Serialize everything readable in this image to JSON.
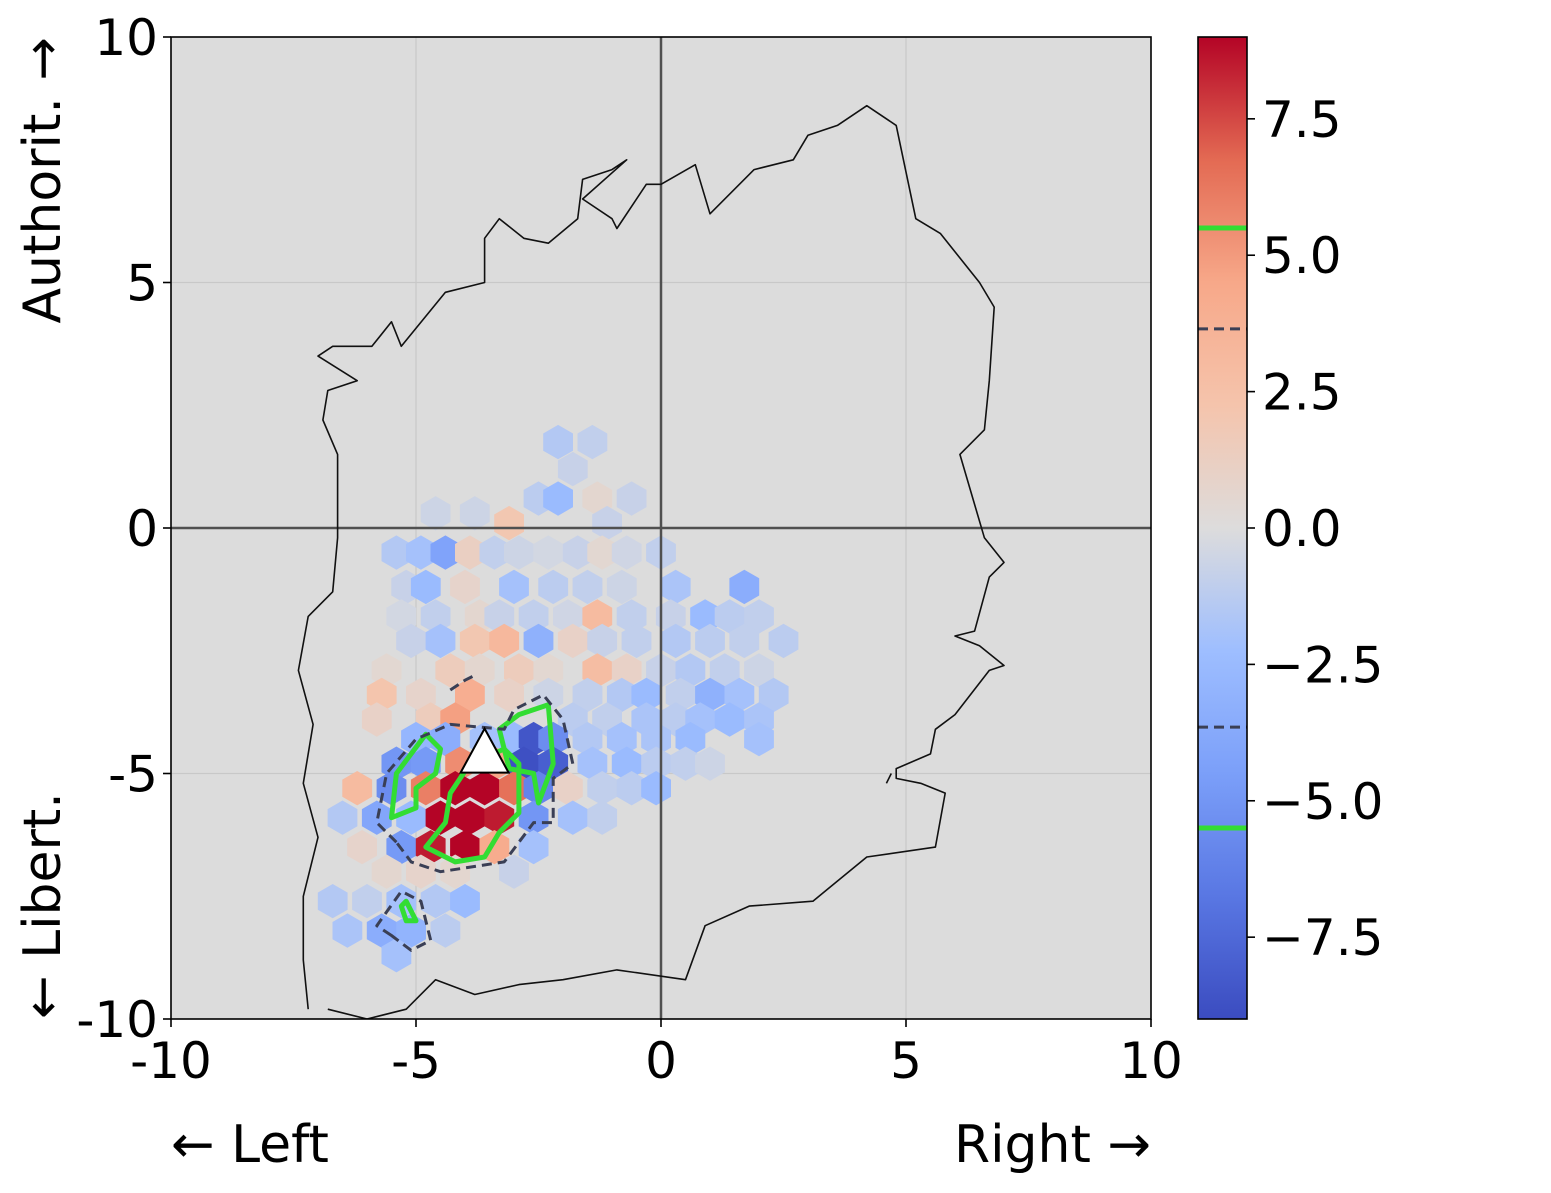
{
  "chart_data": {
    "type": "heatmap",
    "subtype": "hexbin difference map on political compass",
    "xlim": [
      -10,
      10
    ],
    "ylim": [
      -10,
      10
    ],
    "xticks": [
      -10,
      -5,
      0,
      5,
      10
    ],
    "yticks": [
      -10,
      -5,
      0,
      5,
      10
    ],
    "xtick_labels": [
      "-10",
      "-5",
      "0",
      "5",
      "10"
    ],
    "ytick_labels": [
      "-10",
      "-5",
      "0",
      "5",
      "10"
    ],
    "xlabel_left": "← Left",
    "xlabel_right": "Right →",
    "ylabel_bottom": "← Libert.",
    "ylabel_top": "Authorit. →",
    "grid": true,
    "background": "#dcdcdc",
    "colormap": "coolwarm",
    "colorbar": {
      "range": [
        -9,
        9
      ],
      "ticks": [
        -7.5,
        -5.0,
        -2.5,
        0.0,
        2.5,
        5.0,
        7.5
      ],
      "tick_labels": [
        "−7.5",
        "−5.0",
        "−2.5",
        "0.0",
        "2.5",
        "5.0",
        "7.5"
      ],
      "contour_levels": [
        {
          "value": 5.5,
          "style": "solid",
          "color": "#33dd33"
        },
        {
          "value": 3.65,
          "style": "dashed",
          "color": "#3a3f55"
        },
        {
          "value": -3.65,
          "style": "dashed",
          "color": "#3a3f55"
        },
        {
          "value": -5.5,
          "style": "solid",
          "color": "#33dd33"
        }
      ]
    },
    "hex_size": 0.35,
    "hexbins": [
      {
        "x": -2.1,
        "y": 1.75,
        "v": -1.5
      },
      {
        "x": -1.4,
        "y": 1.75,
        "v": -1.0
      },
      {
        "x": -1.8,
        "y": 1.2,
        "v": -0.8
      },
      {
        "x": -2.5,
        "y": 0.6,
        "v": -1.2
      },
      {
        "x": -2.1,
        "y": 0.6,
        "v": -2.5
      },
      {
        "x": -1.3,
        "y": 0.6,
        "v": 0.6
      },
      {
        "x": -0.6,
        "y": 0.6,
        "v": -0.8
      },
      {
        "x": -4.6,
        "y": 0.3,
        "v": -0.6
      },
      {
        "x": -3.8,
        "y": 0.3,
        "v": -0.6
      },
      {
        "x": -3.1,
        "y": 0.1,
        "v": 2.0
      },
      {
        "x": -1.1,
        "y": 0.1,
        "v": -0.8
      },
      {
        "x": -5.4,
        "y": -0.5,
        "v": -1.5
      },
      {
        "x": -4.9,
        "y": -0.5,
        "v": -2.0
      },
      {
        "x": -4.4,
        "y": -0.5,
        "v": -4.2
      },
      {
        "x": -3.9,
        "y": -0.5,
        "v": 1.2
      },
      {
        "x": -3.4,
        "y": -0.5,
        "v": -1.0
      },
      {
        "x": -2.9,
        "y": -0.5,
        "v": -0.6
      },
      {
        "x": -2.3,
        "y": -0.5,
        "v": -0.4
      },
      {
        "x": -1.7,
        "y": -0.5,
        "v": -0.8
      },
      {
        "x": -1.2,
        "y": -0.5,
        "v": 0.5
      },
      {
        "x": -0.7,
        "y": -0.5,
        "v": -0.5
      },
      {
        "x": 0.0,
        "y": -0.5,
        "v": -1.0
      },
      {
        "x": -5.2,
        "y": -1.2,
        "v": -0.8
      },
      {
        "x": -4.8,
        "y": -1.2,
        "v": -2.5
      },
      {
        "x": -4.0,
        "y": -1.2,
        "v": 0.8
      },
      {
        "x": -3.0,
        "y": -1.2,
        "v": -2.0
      },
      {
        "x": -2.2,
        "y": -1.2,
        "v": -1.2
      },
      {
        "x": -1.5,
        "y": -1.2,
        "v": -1.0
      },
      {
        "x": -0.8,
        "y": -1.2,
        "v": -0.6
      },
      {
        "x": 0.3,
        "y": -1.2,
        "v": -1.8
      },
      {
        "x": 1.7,
        "y": -1.2,
        "v": -3.5
      },
      {
        "x": -5.3,
        "y": -1.8,
        "v": -0.4
      },
      {
        "x": -4.6,
        "y": -1.8,
        "v": -1.0
      },
      {
        "x": -3.7,
        "y": -1.8,
        "v": 0.6
      },
      {
        "x": -3.3,
        "y": -1.8,
        "v": -0.8
      },
      {
        "x": -2.6,
        "y": -1.8,
        "v": -1.0
      },
      {
        "x": -1.9,
        "y": -1.8,
        "v": -0.5
      },
      {
        "x": -1.3,
        "y": -1.8,
        "v": 3.0
      },
      {
        "x": -0.6,
        "y": -1.8,
        "v": -1.0
      },
      {
        "x": 0.2,
        "y": -1.8,
        "v": -0.8
      },
      {
        "x": 0.9,
        "y": -1.8,
        "v": -2.5
      },
      {
        "x": 1.4,
        "y": -1.8,
        "v": -1.2
      },
      {
        "x": 2.0,
        "y": -1.8,
        "v": -1.0
      },
      {
        "x": -5.1,
        "y": -2.3,
        "v": -0.8
      },
      {
        "x": -4.5,
        "y": -2.3,
        "v": -2.0
      },
      {
        "x": -3.8,
        "y": -2.3,
        "v": 2.0
      },
      {
        "x": -3.2,
        "y": -2.3,
        "v": 3.2
      },
      {
        "x": -2.5,
        "y": -2.3,
        "v": -3.2
      },
      {
        "x": -1.8,
        "y": -2.3,
        "v": 1.0
      },
      {
        "x": -1.2,
        "y": -2.3,
        "v": -0.8
      },
      {
        "x": -0.5,
        "y": -2.3,
        "v": -1.0
      },
      {
        "x": 0.3,
        "y": -2.3,
        "v": -1.5
      },
      {
        "x": 1.0,
        "y": -2.3,
        "v": -1.2
      },
      {
        "x": 1.7,
        "y": -2.3,
        "v": -1.0
      },
      {
        "x": 2.5,
        "y": -2.3,
        "v": -1.2
      },
      {
        "x": -5.6,
        "y": -2.9,
        "v": 0.5
      },
      {
        "x": -4.3,
        "y": -2.9,
        "v": 1.5
      },
      {
        "x": -3.7,
        "y": -2.9,
        "v": 0.6
      },
      {
        "x": -2.9,
        "y": -2.9,
        "v": 1.5
      },
      {
        "x": -2.3,
        "y": -2.9,
        "v": 0.5
      },
      {
        "x": -1.3,
        "y": -2.9,
        "v": 2.8
      },
      {
        "x": -0.7,
        "y": -2.9,
        "v": 1.0
      },
      {
        "x": 0.0,
        "y": -2.9,
        "v": -0.8
      },
      {
        "x": 0.6,
        "y": -2.9,
        "v": -1.5
      },
      {
        "x": 1.3,
        "y": -2.9,
        "v": -1.0
      },
      {
        "x": 2.0,
        "y": -2.9,
        "v": -0.6
      },
      {
        "x": -5.7,
        "y": -3.4,
        "v": 2.2
      },
      {
        "x": -4.9,
        "y": -3.4,
        "v": 0.8
      },
      {
        "x": -3.9,
        "y": -3.4,
        "v": 4.0
      },
      {
        "x": -3.1,
        "y": -3.4,
        "v": 1.0
      },
      {
        "x": -2.3,
        "y": -3.4,
        "v": -0.6
      },
      {
        "x": -1.5,
        "y": -3.4,
        "v": -1.0
      },
      {
        "x": -0.8,
        "y": -3.4,
        "v": -1.5
      },
      {
        "x": -0.3,
        "y": -3.4,
        "v": -2.5
      },
      {
        "x": 0.4,
        "y": -3.4,
        "v": -1.0
      },
      {
        "x": 1.0,
        "y": -3.4,
        "v": -3.2
      },
      {
        "x": 1.6,
        "y": -3.4,
        "v": -2.0
      },
      {
        "x": 2.3,
        "y": -3.4,
        "v": -1.5
      },
      {
        "x": -5.8,
        "y": -3.9,
        "v": 1.0
      },
      {
        "x": -4.7,
        "y": -3.9,
        "v": 1.5
      },
      {
        "x": -4.2,
        "y": -3.9,
        "v": 4.8
      },
      {
        "x": -1.8,
        "y": -3.9,
        "v": -1.2
      },
      {
        "x": -1.1,
        "y": -3.9,
        "v": -1.0
      },
      {
        "x": -0.3,
        "y": -3.9,
        "v": -1.8
      },
      {
        "x": 0.3,
        "y": -3.9,
        "v": -1.2
      },
      {
        "x": 0.8,
        "y": -3.9,
        "v": -2.0
      },
      {
        "x": 1.4,
        "y": -3.9,
        "v": -2.5
      },
      {
        "x": 2.0,
        "y": -3.9,
        "v": -1.8
      },
      {
        "x": -5.0,
        "y": -4.3,
        "v": -2.8
      },
      {
        "x": -4.4,
        "y": -4.3,
        "v": -3.5
      },
      {
        "x": -3.6,
        "y": -4.3,
        "v": -2.0
      },
      {
        "x": -3.0,
        "y": -4.3,
        "v": -2.5
      },
      {
        "x": -2.6,
        "y": -4.3,
        "v": -8.5
      },
      {
        "x": -2.2,
        "y": -4.3,
        "v": -5.5
      },
      {
        "x": -1.5,
        "y": -4.3,
        "v": -1.5
      },
      {
        "x": -0.8,
        "y": -4.3,
        "v": -2.0
      },
      {
        "x": -0.1,
        "y": -4.3,
        "v": -1.8
      },
      {
        "x": 0.6,
        "y": -4.3,
        "v": -2.5
      },
      {
        "x": 2.0,
        "y": -4.3,
        "v": -2.0
      },
      {
        "x": -5.4,
        "y": -4.8,
        "v": -5.0
      },
      {
        "x": -4.8,
        "y": -4.8,
        "v": -4.8
      },
      {
        "x": -4.1,
        "y": -4.8,
        "v": 5.5
      },
      {
        "x": -3.4,
        "y": -4.8,
        "v": 4.5
      },
      {
        "x": -2.8,
        "y": -4.8,
        "v": -8.8
      },
      {
        "x": -2.2,
        "y": -4.8,
        "v": -8.0
      },
      {
        "x": -1.4,
        "y": -4.8,
        "v": -2.0
      },
      {
        "x": -0.7,
        "y": -4.8,
        "v": -2.5
      },
      {
        "x": -0.1,
        "y": -4.8,
        "v": -1.2
      },
      {
        "x": 0.5,
        "y": -4.8,
        "v": -1.0
      },
      {
        "x": 1.0,
        "y": -4.8,
        "v": -0.6
      },
      {
        "x": -6.2,
        "y": -5.3,
        "v": 3.0
      },
      {
        "x": -5.5,
        "y": -5.3,
        "v": -5.5
      },
      {
        "x": -4.8,
        "y": -5.3,
        "v": 6.0
      },
      {
        "x": -4.2,
        "y": -5.3,
        "v": 9.0
      },
      {
        "x": -3.6,
        "y": -5.3,
        "v": 9.0
      },
      {
        "x": -3.0,
        "y": -5.3,
        "v": 6.5
      },
      {
        "x": -2.5,
        "y": -5.3,
        "v": -6.0
      },
      {
        "x": -1.9,
        "y": -5.3,
        "v": 1.0
      },
      {
        "x": -1.2,
        "y": -5.3,
        "v": -1.0
      },
      {
        "x": -0.6,
        "y": -5.3,
        "v": -1.2
      },
      {
        "x": -0.1,
        "y": -5.3,
        "v": -2.5
      },
      {
        "x": -6.5,
        "y": -5.9,
        "v": -1.5
      },
      {
        "x": -5.8,
        "y": -5.9,
        "v": -4.0
      },
      {
        "x": -5.1,
        "y": -5.9,
        "v": -2.5
      },
      {
        "x": -4.5,
        "y": -5.9,
        "v": 9.0
      },
      {
        "x": -3.9,
        "y": -5.9,
        "v": 9.0
      },
      {
        "x": -3.3,
        "y": -5.9,
        "v": 8.5
      },
      {
        "x": -2.6,
        "y": -5.9,
        "v": -5.0
      },
      {
        "x": -1.8,
        "y": -5.9,
        "v": -2.0
      },
      {
        "x": -1.2,
        "y": -5.9,
        "v": -1.0
      },
      {
        "x": -6.1,
        "y": -6.5,
        "v": 0.8
      },
      {
        "x": -5.3,
        "y": -6.5,
        "v": -4.8
      },
      {
        "x": -4.7,
        "y": -6.5,
        "v": 8.5
      },
      {
        "x": -4.0,
        "y": -6.5,
        "v": 9.0
      },
      {
        "x": -3.4,
        "y": -6.5,
        "v": 4.2
      },
      {
        "x": -2.6,
        "y": -6.5,
        "v": -2.0
      },
      {
        "x": -5.6,
        "y": -7.0,
        "v": 0.6
      },
      {
        "x": -4.9,
        "y": -7.0,
        "v": 0.8
      },
      {
        "x": -4.2,
        "y": -7.0,
        "v": 0.6
      },
      {
        "x": -3.0,
        "y": -7.0,
        "v": -0.8
      },
      {
        "x": -6.7,
        "y": -7.6,
        "v": -1.5
      },
      {
        "x": -6.0,
        "y": -7.6,
        "v": -1.0
      },
      {
        "x": -5.3,
        "y": -7.6,
        "v": -2.0
      },
      {
        "x": -4.6,
        "y": -7.6,
        "v": -1.5
      },
      {
        "x": -4.0,
        "y": -7.6,
        "v": -2.5
      },
      {
        "x": -6.4,
        "y": -8.2,
        "v": -1.8
      },
      {
        "x": -5.7,
        "y": -8.2,
        "v": -3.5
      },
      {
        "x": -5.1,
        "y": -8.2,
        "v": -3.0
      },
      {
        "x": -4.4,
        "y": -8.2,
        "v": -1.2
      },
      {
        "x": -5.4,
        "y": -8.7,
        "v": -2.0
      }
    ],
    "outline": [
      [
        -7.2,
        -9.8
      ],
      [
        -7.3,
        -8.8
      ],
      [
        -7.3,
        -7.5
      ],
      [
        -7.0,
        -6.3
      ],
      [
        -7.3,
        -5.2
      ],
      [
        -7.1,
        -4.0
      ],
      [
        -7.4,
        -2.9
      ],
      [
        -7.2,
        -1.8
      ],
      [
        -6.7,
        -1.3
      ],
      [
        -6.6,
        -0.2
      ],
      [
        -6.6,
        1.5
      ],
      [
        -6.9,
        2.2
      ],
      [
        -6.8,
        2.8
      ],
      [
        -6.2,
        3.0
      ],
      [
        -7.0,
        3.5
      ],
      [
        -6.7,
        3.7
      ],
      [
        -5.9,
        3.7
      ],
      [
        -5.5,
        4.2
      ],
      [
        -5.3,
        3.7
      ],
      [
        -4.4,
        4.8
      ],
      [
        -3.6,
        5.0
      ],
      [
        -3.6,
        5.9
      ],
      [
        -3.3,
        6.3
      ],
      [
        -2.8,
        5.9
      ],
      [
        -2.3,
        5.8
      ],
      [
        -1.7,
        6.3
      ],
      [
        -1.6,
        7.1
      ],
      [
        -1.0,
        7.3
      ],
      [
        -0.7,
        7.5
      ],
      [
        -1.6,
        6.7
      ],
      [
        -1.0,
        6.3
      ],
      [
        -0.9,
        6.1
      ],
      [
        -0.3,
        7.0
      ],
      [
        0.0,
        7.0
      ],
      [
        0.7,
        7.4
      ],
      [
        1.0,
        6.4
      ],
      [
        1.9,
        7.3
      ],
      [
        2.7,
        7.5
      ],
      [
        3.0,
        8.0
      ],
      [
        3.6,
        8.2
      ],
      [
        4.2,
        8.6
      ],
      [
        4.8,
        8.2
      ],
      [
        5.2,
        6.3
      ],
      [
        5.7,
        6.0
      ],
      [
        6.5,
        5.0
      ],
      [
        6.8,
        4.5
      ],
      [
        6.7,
        3.0
      ],
      [
        6.6,
        2.0
      ],
      [
        6.1,
        1.5
      ],
      [
        6.6,
        -0.2
      ],
      [
        7.0,
        -0.7
      ],
      [
        6.7,
        -1.0
      ],
      [
        6.4,
        -2.1
      ],
      [
        6.0,
        -2.2
      ],
      [
        6.5,
        -2.4
      ],
      [
        7.0,
        -2.8
      ],
      [
        6.7,
        -2.9
      ],
      [
        6.0,
        -3.8
      ],
      [
        5.6,
        -4.1
      ],
      [
        5.5,
        -4.6
      ],
      [
        4.8,
        -4.9
      ],
      [
        4.8,
        -5.1
      ],
      [
        5.3,
        -5.2
      ],
      [
        5.8,
        -5.4
      ],
      [
        5.6,
        -6.5
      ],
      [
        4.2,
        -6.7
      ],
      [
        3.1,
        -7.6
      ],
      [
        1.8,
        -7.7
      ],
      [
        0.9,
        -8.1
      ],
      [
        0.5,
        -9.2
      ],
      [
        -0.9,
        -9.0
      ],
      [
        -2.0,
        -9.2
      ],
      [
        -2.9,
        -9.3
      ],
      [
        -3.8,
        -9.5
      ],
      [
        -4.6,
        -9.2
      ],
      [
        -5.2,
        -9.8
      ],
      [
        -6.0,
        -10.0
      ],
      [
        -6.8,
        -9.8
      ]
    ],
    "outline_tail": [
      [
        4.7,
        -5.0
      ],
      [
        4.6,
        -5.2
      ]
    ],
    "contours": {
      "dashed": [
        [
          [
            -5.4,
            -6.4
          ],
          [
            -5.8,
            -6.0
          ],
          [
            -5.6,
            -5.0
          ],
          [
            -5.0,
            -4.3
          ],
          [
            -4.3,
            -4.0
          ],
          [
            -3.2,
            -4.1
          ],
          [
            -3.0,
            -3.7
          ],
          [
            -2.4,
            -3.4
          ],
          [
            -2.0,
            -3.9
          ],
          [
            -1.8,
            -4.8
          ],
          [
            -2.2,
            -5.1
          ],
          [
            -2.2,
            -6.0
          ],
          [
            -2.6,
            -6.0
          ],
          [
            -3.2,
            -6.8
          ],
          [
            -4.5,
            -7.0
          ],
          [
            -5.1,
            -6.8
          ]
        ],
        [
          [
            -5.5,
            -8.3
          ],
          [
            -5.8,
            -8.1
          ],
          [
            -5.3,
            -7.4
          ],
          [
            -4.9,
            -7.6
          ],
          [
            -4.7,
            -8.4
          ],
          [
            -5.1,
            -8.6
          ]
        ],
        [
          [
            -4.3,
            -3.3
          ],
          [
            -4.0,
            -3.1
          ],
          [
            -3.8,
            -3.0
          ]
        ]
      ],
      "green": [
        [
          [
            -5.5,
            -5.9
          ],
          [
            -5.4,
            -5.0
          ],
          [
            -4.8,
            -4.2
          ],
          [
            -4.5,
            -4.5
          ],
          [
            -4.6,
            -5.0
          ],
          [
            -5.0,
            -5.3
          ],
          [
            -5.0,
            -5.7
          ]
        ],
        [
          [
            -4.4,
            -6.0
          ],
          [
            -4.8,
            -6.5
          ],
          [
            -4.2,
            -6.8
          ],
          [
            -3.6,
            -6.7
          ],
          [
            -3.3,
            -6.2
          ],
          [
            -2.9,
            -5.8
          ],
          [
            -2.9,
            -4.8
          ],
          [
            -3.2,
            -4.5
          ],
          [
            -3.9,
            -4.8
          ],
          [
            -4.3,
            -5.4
          ]
        ],
        [
          [
            -3.3,
            -4.1
          ],
          [
            -2.9,
            -3.8
          ],
          [
            -2.3,
            -3.6
          ],
          [
            -2.2,
            -4.8
          ],
          [
            -2.5,
            -5.6
          ],
          [
            -2.6,
            -5.0
          ],
          [
            -3.1,
            -4.9
          ]
        ],
        [
          [
            -5.3,
            -7.7
          ],
          [
            -5.2,
            -8.0
          ],
          [
            -5.0,
            -8.0
          ],
          [
            -5.2,
            -7.6
          ]
        ]
      ]
    },
    "marker": {
      "x": -3.6,
      "y": -4.9,
      "shape": "triangle",
      "color": "#ffffff",
      "edge": "#000000"
    }
  }
}
